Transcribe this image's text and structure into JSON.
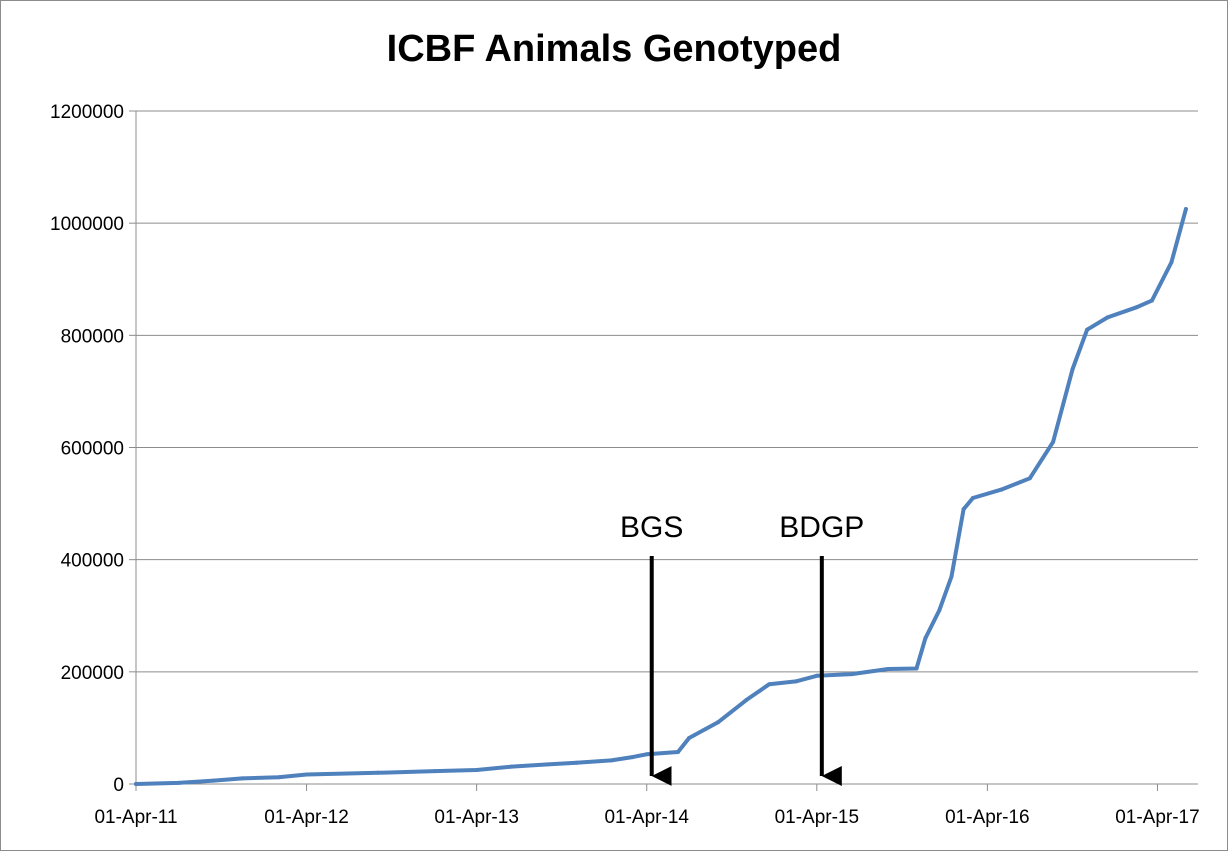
{
  "chart_data": {
    "type": "line",
    "title": "ICBF Animals Genotyped",
    "xlabel": "",
    "ylabel": "",
    "ylim": [
      0,
      1200000
    ],
    "yticks": [
      0,
      200000,
      400000,
      600000,
      800000,
      1000000,
      1200000
    ],
    "xticks": [
      "01-Apr-11",
      "01-Apr-12",
      "01-Apr-13",
      "01-Apr-14",
      "01-Apr-15",
      "01-Apr-16",
      "01-Apr-17"
    ],
    "grid": "horizontal",
    "legend": "none",
    "series": [
      {
        "color": "#4f81bd",
        "points": [
          [
            "2011-04-01",
            0
          ],
          [
            "2011-07-01",
            2000
          ],
          [
            "2011-09-15",
            6000
          ],
          [
            "2011-11-15",
            10000
          ],
          [
            "2012-02-01",
            12000
          ],
          [
            "2012-04-01",
            17000
          ],
          [
            "2012-09-01",
            20000
          ],
          [
            "2013-01-01",
            23000
          ],
          [
            "2013-04-01",
            25000
          ],
          [
            "2013-06-15",
            31000
          ],
          [
            "2013-09-01",
            35000
          ],
          [
            "2013-11-01",
            38000
          ],
          [
            "2014-01-15",
            42000
          ],
          [
            "2014-03-01",
            48000
          ],
          [
            "2014-04-01",
            53000
          ],
          [
            "2014-06-07",
            57000
          ],
          [
            "2014-07-01",
            82000
          ],
          [
            "2014-09-01",
            110000
          ],
          [
            "2014-11-01",
            150000
          ],
          [
            "2014-12-20",
            178000
          ],
          [
            "2015-02-15",
            183000
          ],
          [
            "2015-04-01",
            193000
          ],
          [
            "2015-06-15",
            196000
          ],
          [
            "2015-09-01",
            205000
          ],
          [
            "2015-11-01",
            206000
          ],
          [
            "2015-11-20",
            260000
          ],
          [
            "2015-12-20",
            310000
          ],
          [
            "2016-01-15",
            370000
          ],
          [
            "2016-02-10",
            490000
          ],
          [
            "2016-03-01",
            510000
          ],
          [
            "2016-05-01",
            525000
          ],
          [
            "2016-07-01",
            545000
          ],
          [
            "2016-08-20",
            610000
          ],
          [
            "2016-10-01",
            740000
          ],
          [
            "2016-11-01",
            810000
          ],
          [
            "2016-12-15",
            832000
          ],
          [
            "2017-02-15",
            850000
          ],
          [
            "2017-03-20",
            862000
          ],
          [
            "2017-05-01",
            930000
          ],
          [
            "2017-06-01",
            1025000
          ]
        ]
      }
    ],
    "annotations": [
      {
        "text": "BGS",
        "x": "2014-04-01",
        "arrow_to": 0
      },
      {
        "text": "BDGP",
        "x": "2015-04-01",
        "arrow_to": 0
      }
    ]
  }
}
